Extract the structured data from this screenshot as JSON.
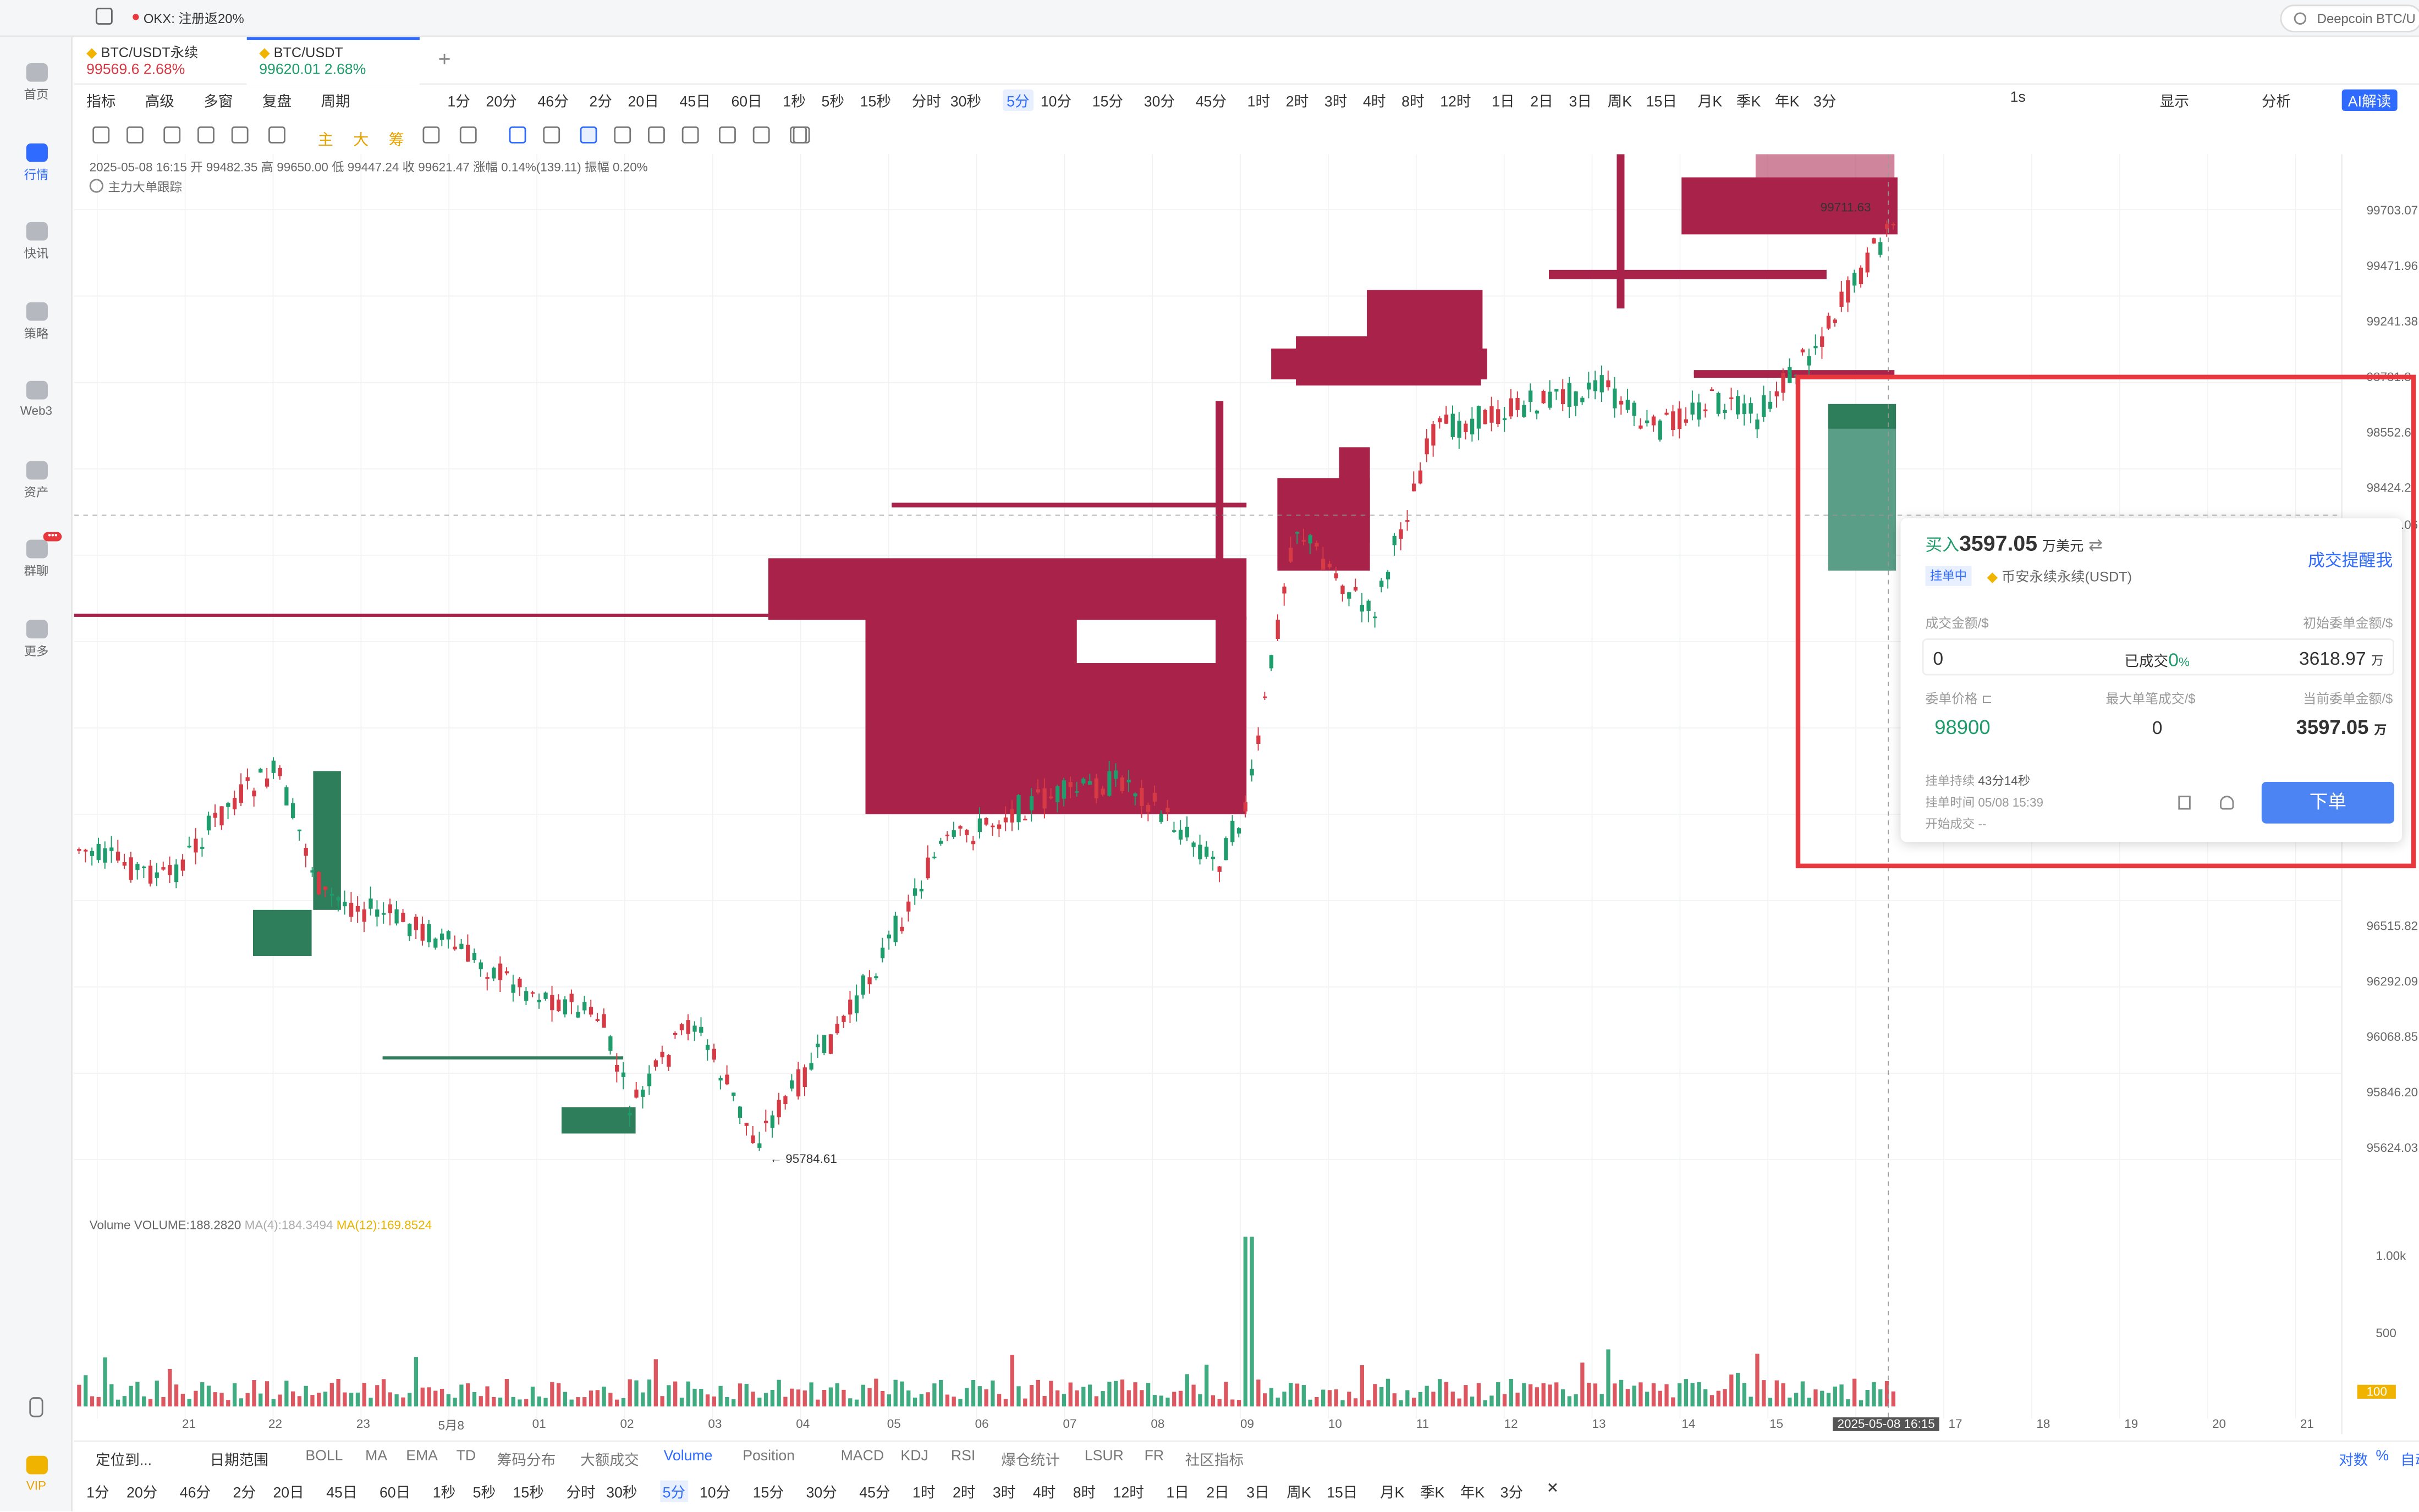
{
  "topbar": {
    "notice": "OKX: 注册返20%",
    "search_placeholder": "Deepcoin BTC/U"
  },
  "sidebar": {
    "items": [
      {
        "label": "首页",
        "icon": "home-icon"
      },
      {
        "label": "行情",
        "icon": "chart-icon"
      },
      {
        "label": "快讯",
        "icon": "news-icon"
      },
      {
        "label": "策略",
        "icon": "strategy-icon"
      },
      {
        "label": "Web3",
        "icon": "web3-icon"
      },
      {
        "label": "资产",
        "icon": "wallet-icon"
      },
      {
        "label": "群聊",
        "icon": "chat-icon",
        "badge": "•••"
      },
      {
        "label": "更多",
        "icon": "grid-icon"
      }
    ],
    "vip": "VIP"
  },
  "tabs": [
    {
      "name": "BTC/USDT永续",
      "price": "99569.6",
      "change": "2.68%",
      "color": "#d63a44"
    },
    {
      "name": "BTC/USDT",
      "price": "99620.01",
      "change": "2.68%",
      "color": "#1f9c6b"
    }
  ],
  "toolbar": {
    "left": [
      "指标",
      "高级",
      "多窗",
      "复盘",
      "周期"
    ],
    "periods": [
      "1分",
      "20分",
      "46分",
      "2分",
      "20日",
      "45日",
      "60日",
      "1秒",
      "5秒",
      "15秒",
      "分时",
      "30秒",
      "5分",
      "10分",
      "15分",
      "30分",
      "45分",
      "1时",
      "2时",
      "3时",
      "4时",
      "8时",
      "12时",
      "1日",
      "2日",
      "3日",
      "周K",
      "15日",
      "月K",
      "季K",
      "年K",
      "3分"
    ],
    "selected": "5分",
    "right": [
      "1s",
      "显示",
      "分析",
      "AI解读"
    ]
  },
  "drawtools": [
    "主",
    "大",
    "筹"
  ],
  "info": {
    "line1": "2025-05-08 16:15  开 99482.35  高 99650.00  低 99447.24  收 99621.47  涨幅 0.14%(139.11)  振幅 0.20%",
    "line2": "主力大单跟踪",
    "volume": "Volume  VOLUME:188.2820",
    "ma4": "MA(4):184.3494",
    "ma12": "MA(12):169.8524"
  },
  "price_axis": [
    "99703.07",
    "99471.96",
    "99241.38",
    "98781.8",
    "98552.6",
    "98424.2",
    "96740.06",
    "96515.82",
    "96292.09",
    "96068.85",
    "95846.20",
    "95624.03"
  ],
  "vol_axis": [
    "1.00k",
    "500",
    "100"
  ],
  "time_axis": [
    "21",
    "22",
    "23",
    "5月8",
    "01",
    "02",
    "03",
    "04",
    "05",
    "06",
    "07",
    "08",
    "09",
    "10",
    "11",
    "12",
    "13",
    "14",
    "15",
    "2025-05-08 16:15",
    "17",
    "18",
    "19",
    "20",
    "21"
  ],
  "labels": {
    "high": "99711.63",
    "low": "← 95784.61"
  },
  "popup": {
    "title_prefix": "买入",
    "amount": "3597.05",
    "amount_unit": "万美元",
    "alert": "成交提醒我",
    "status": "挂单中",
    "exchange": "币安永续永续(USDT)",
    "filled_label": "成交金额/$",
    "initial_label": "初始委单金额/$",
    "filled": "0",
    "filled_pct_label": "已成交",
    "filled_pct": "0",
    "pct_sign": "%",
    "initial": "3618.97",
    "wan": "万",
    "price_label": "委单价格",
    "max_label": "最大单笔成交/$",
    "current_label": "当前委单金额/$",
    "price": "98900",
    "max": "0",
    "current": "3597.05",
    "duration_label": "挂单持续",
    "duration": "43分14秒",
    "time_label": "挂单时间",
    "time": "05/08 15:39",
    "start_label": "开始成交",
    "start": "--",
    "order_button": "下单"
  },
  "bottom": {
    "row1": [
      "定位到...",
      "日期范围",
      "BOLL",
      "MA",
      "EMA",
      "TD",
      "筹码分布",
      "大额成交",
      "Volume",
      "Position",
      "MACD",
      "KDJ",
      "RSI",
      "爆仓统计",
      "LSUR",
      "FR",
      "社区指标"
    ],
    "row1_right": [
      "对数",
      "%",
      "自动"
    ],
    "row2": [
      "1分",
      "20分",
      "46分",
      "2分",
      "20日",
      "45日",
      "60日",
      "1秒",
      "5秒",
      "15秒",
      "分时",
      "30秒",
      "5分",
      "10分",
      "15分",
      "30分",
      "45分",
      "1时",
      "2时",
      "3时",
      "4时",
      "8时",
      "12时",
      "1日",
      "2日",
      "3日",
      "周K",
      "15日",
      "月K",
      "季K",
      "年K",
      "3分"
    ],
    "row2_selected": "5分"
  },
  "colors": {
    "up": "#1f9c6b",
    "down": "#d63a44",
    "heat": "#a8224a",
    "accent": "#2f6bff"
  }
}
